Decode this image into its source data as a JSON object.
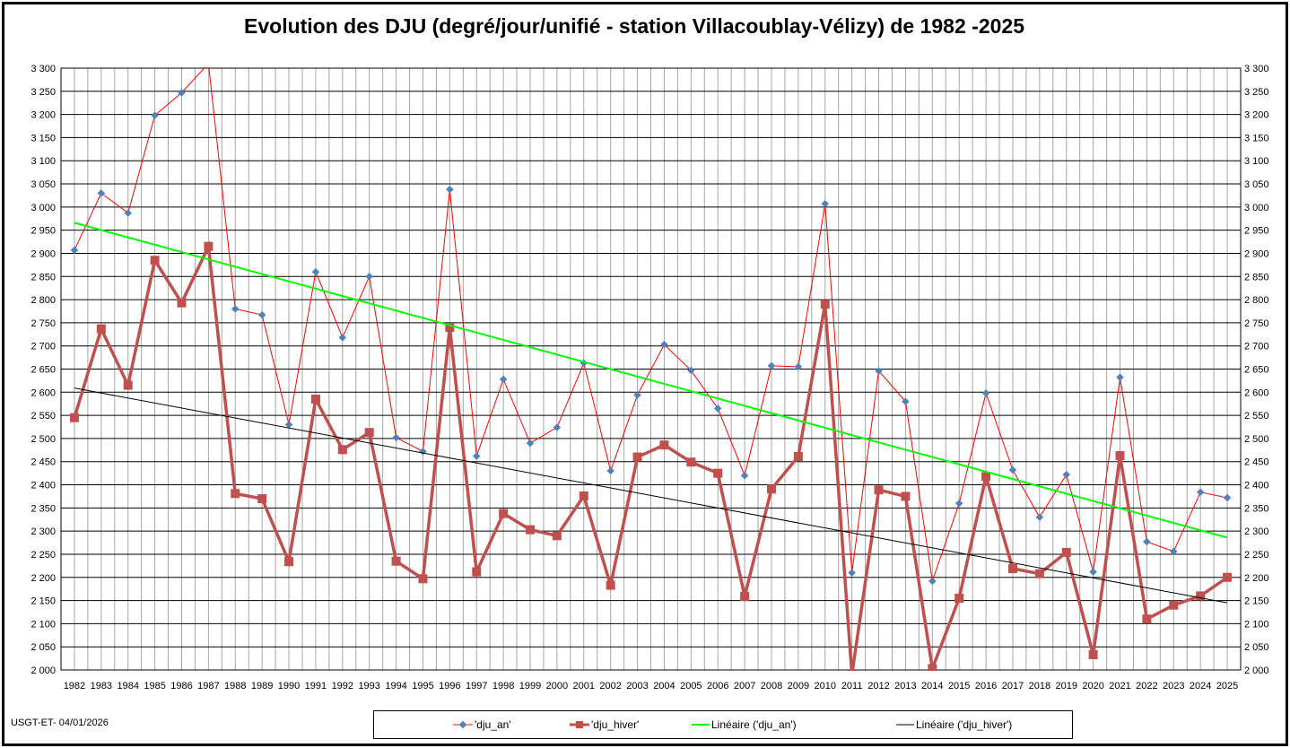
{
  "footer": "USGT-ET-  04/01/2026",
  "chart_data": {
    "type": "line",
    "title": "Evolution des DJU (degré/jour/unifié - station Villacoublay-Vélizy) de 1982 -2025",
    "xlabel": "",
    "ylabel": "",
    "ylim": [
      2000,
      3300
    ],
    "ytick_step": 50,
    "grid": true,
    "legend_position": "bottom",
    "categories": [
      "1982",
      "1983",
      "1984",
      "1985",
      "1986",
      "1987",
      "1988",
      "1989",
      "1990",
      "1991",
      "1992",
      "1993",
      "1994",
      "1995",
      "1996",
      "1997",
      "1998",
      "1999",
      "2000",
      "2001",
      "2002",
      "2003",
      "2004",
      "2005",
      "2006",
      "2007",
      "2008",
      "2009",
      "2010",
      "2011",
      "2012",
      "2013",
      "2014",
      "2015",
      "2016",
      "2017",
      "2018",
      "2019",
      "2020",
      "2021",
      "2022",
      "2023",
      "2024",
      "2025"
    ],
    "series": [
      {
        "name": "'dju_an'",
        "color": "#ff0000",
        "marker_color": "#4f81bd",
        "values": [
          2907,
          3030,
          2987,
          3198,
          3247,
          3310,
          2780,
          2767,
          2530,
          2860,
          2718,
          2850,
          2502,
          2472,
          3038,
          2462,
          2628,
          2490,
          2524,
          2663,
          2430,
          2594,
          2703,
          2647,
          2565,
          2420,
          2657,
          2655,
          3007,
          2210,
          2646,
          2580,
          2192,
          2360,
          2598,
          2432,
          2330,
          2422,
          2212,
          2632,
          2277,
          2256,
          2384,
          2372
        ]
      },
      {
        "name": "'dju_hiver'",
        "color": "#c0504d",
        "values": [
          2545,
          2737,
          2615,
          2885,
          2793,
          2915,
          2381,
          2370,
          2234,
          2585,
          2476,
          2513,
          2235,
          2197,
          2740,
          2212,
          2338,
          2303,
          2290,
          2376,
          2183,
          2460,
          2486,
          2449,
          2425,
          2159,
          2391,
          2461,
          2790,
          1990,
          2389,
          2375,
          2003,
          2155,
          2418,
          2219,
          2208,
          2254,
          2033,
          2463,
          2110,
          2140,
          2160,
          2200
        ]
      },
      {
        "name": "Linéaire ('dju_an')",
        "color": "#00ff00",
        "trend": [
          2966,
          2286
        ]
      },
      {
        "name": "Linéaire ('dju_hiver')",
        "color": "#000000",
        "trend": [
          2609,
          2145
        ]
      }
    ]
  }
}
